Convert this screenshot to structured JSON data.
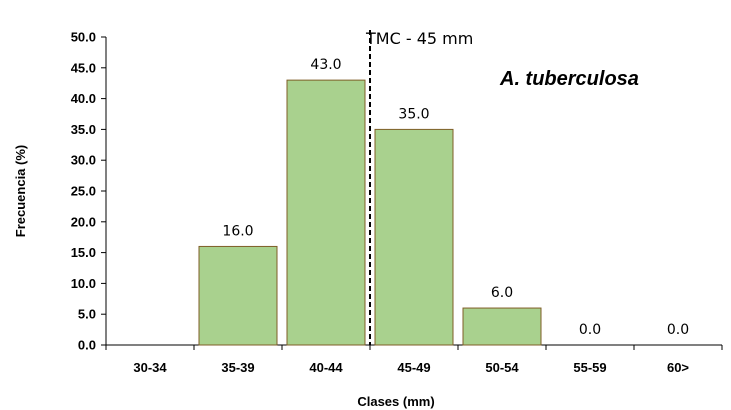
{
  "chart_data": {
    "type": "bar",
    "categories": [
      "30-34",
      "35-39",
      "40-44",
      "45-49",
      "50-54",
      "55-59",
      "60>"
    ],
    "values": [
      null,
      16.0,
      43.0,
      35.0,
      6.0,
      0.0,
      0.0
    ],
    "data_labels": [
      "",
      "16.0",
      "43.0",
      "35.0",
      "6.0",
      "0.0",
      "0.0"
    ],
    "ytick_labels": [
      "0.0",
      "5.0",
      "10.0",
      "15.0",
      "20.0",
      "25.0",
      "30.0",
      "35.0",
      "40.0",
      "45.0",
      "50.0"
    ],
    "title": "",
    "xlabel": "Clases (mm)",
    "ylabel": "Frecuencia (%)",
    "ylim": [
      0,
      50
    ],
    "grid": false,
    "annotation": {
      "text": "TMC - 45 mm",
      "x_value": 45,
      "line_style": "dashed"
    },
    "species_label": "A. tuberculosa",
    "bar_color": "#a9d18e",
    "bar_edge_color": "#7f5e27"
  }
}
